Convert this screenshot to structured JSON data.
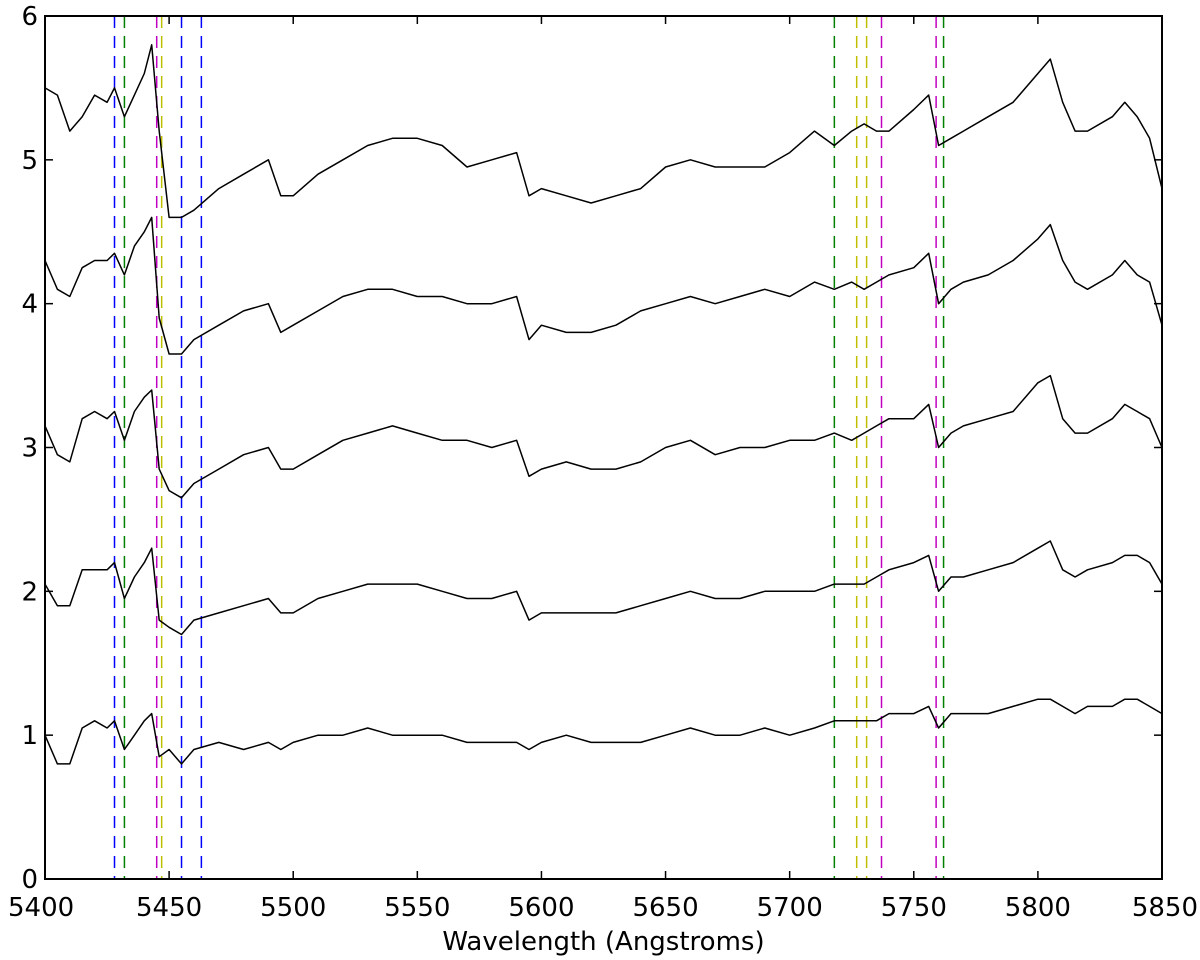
{
  "chart_data": {
    "type": "line",
    "title": "",
    "xlabel": "Wavelength (Angstroms)",
    "ylabel": "",
    "xlim": [
      5400,
      5850
    ],
    "ylim": [
      0,
      6
    ],
    "xticks": [
      5400,
      5450,
      5500,
      5550,
      5600,
      5650,
      5700,
      5750,
      5800,
      5850
    ],
    "yticks": [
      0,
      1,
      2,
      3,
      4,
      5,
      6
    ],
    "grid": false,
    "legend": "none",
    "line_color": "#000000",
    "vertical_lines": [
      {
        "x": 5428,
        "color": "#0000ff"
      },
      {
        "x": 5432,
        "color": "#008000"
      },
      {
        "x": 5445,
        "color": "#c000c0"
      },
      {
        "x": 5447,
        "color": "#bfbf00"
      },
      {
        "x": 5455,
        "color": "#0000ff"
      },
      {
        "x": 5463,
        "color": "#0000ff"
      },
      {
        "x": 5718,
        "color": "#008000"
      },
      {
        "x": 5727,
        "color": "#bfbf00"
      },
      {
        "x": 5731,
        "color": "#bfbf00"
      },
      {
        "x": 5737,
        "color": "#c000c0"
      },
      {
        "x": 5759,
        "color": "#c000c0"
      },
      {
        "x": 5762,
        "color": "#008000"
      }
    ],
    "series": [
      {
        "x": [
          5400,
          5405,
          5410,
          5415,
          5420,
          5425,
          5428,
          5432,
          5436,
          5440,
          5443,
          5446,
          5450,
          5455,
          5460,
          5470,
          5480,
          5490,
          5495,
          5500,
          5510,
          5520,
          5530,
          5540,
          5550,
          5560,
          5570,
          5580,
          5590,
          5595,
          5600,
          5610,
          5620,
          5630,
          5640,
          5650,
          5660,
          5670,
          5680,
          5690,
          5700,
          5710,
          5718,
          5725,
          5730,
          5735,
          5740,
          5750,
          5756,
          5760,
          5765,
          5770,
          5780,
          5790,
          5800,
          5805,
          5810,
          5815,
          5820,
          5830,
          5835,
          5840,
          5845,
          5850
        ],
        "values": [
          5.5,
          5.45,
          5.2,
          5.3,
          5.45,
          5.4,
          5.5,
          5.3,
          5.45,
          5.6,
          5.8,
          5.2,
          4.6,
          4.6,
          4.65,
          4.8,
          4.9,
          5.0,
          4.75,
          4.75,
          4.9,
          5.0,
          5.1,
          5.15,
          5.15,
          5.1,
          4.95,
          5.0,
          5.05,
          4.75,
          4.8,
          4.75,
          4.7,
          4.75,
          4.8,
          4.95,
          5.0,
          4.95,
          4.95,
          4.95,
          5.05,
          5.2,
          5.1,
          5.2,
          5.25,
          5.2,
          5.2,
          5.35,
          5.45,
          5.1,
          5.15,
          5.2,
          5.3,
          5.4,
          5.6,
          5.7,
          5.4,
          5.2,
          5.2,
          5.3,
          5.4,
          5.3,
          5.15,
          4.8
        ]
      },
      {
        "x": [
          5400,
          5405,
          5410,
          5415,
          5420,
          5425,
          5428,
          5432,
          5436,
          5440,
          5443,
          5446,
          5450,
          5455,
          5460,
          5470,
          5480,
          5490,
          5495,
          5500,
          5510,
          5520,
          5530,
          5540,
          5550,
          5560,
          5570,
          5580,
          5590,
          5595,
          5600,
          5610,
          5620,
          5630,
          5640,
          5650,
          5660,
          5670,
          5680,
          5690,
          5700,
          5710,
          5718,
          5725,
          5730,
          5735,
          5740,
          5750,
          5756,
          5760,
          5765,
          5770,
          5780,
          5790,
          5800,
          5805,
          5810,
          5815,
          5820,
          5830,
          5835,
          5840,
          5845,
          5850
        ],
        "values": [
          4.3,
          4.1,
          4.05,
          4.25,
          4.3,
          4.3,
          4.35,
          4.2,
          4.4,
          4.5,
          4.6,
          3.9,
          3.65,
          3.65,
          3.75,
          3.85,
          3.95,
          4.0,
          3.8,
          3.85,
          3.95,
          4.05,
          4.1,
          4.1,
          4.05,
          4.05,
          4.0,
          4.0,
          4.05,
          3.75,
          3.85,
          3.8,
          3.8,
          3.85,
          3.95,
          4.0,
          4.05,
          4.0,
          4.05,
          4.1,
          4.05,
          4.15,
          4.1,
          4.15,
          4.1,
          4.15,
          4.2,
          4.25,
          4.35,
          4.0,
          4.1,
          4.15,
          4.2,
          4.3,
          4.45,
          4.55,
          4.3,
          4.15,
          4.1,
          4.2,
          4.3,
          4.2,
          4.15,
          3.85
        ]
      },
      {
        "x": [
          5400,
          5405,
          5410,
          5415,
          5420,
          5425,
          5428,
          5432,
          5436,
          5440,
          5443,
          5446,
          5450,
          5455,
          5460,
          5470,
          5480,
          5490,
          5495,
          5500,
          5510,
          5520,
          5530,
          5540,
          5550,
          5560,
          5570,
          5580,
          5590,
          5595,
          5600,
          5610,
          5620,
          5630,
          5640,
          5650,
          5660,
          5670,
          5680,
          5690,
          5700,
          5710,
          5718,
          5725,
          5730,
          5735,
          5740,
          5750,
          5756,
          5760,
          5765,
          5770,
          5780,
          5790,
          5800,
          5805,
          5810,
          5815,
          5820,
          5830,
          5835,
          5840,
          5845,
          5850
        ],
        "values": [
          3.15,
          2.95,
          2.9,
          3.2,
          3.25,
          3.2,
          3.25,
          3.05,
          3.25,
          3.35,
          3.4,
          2.85,
          2.7,
          2.65,
          2.75,
          2.85,
          2.95,
          3.0,
          2.85,
          2.85,
          2.95,
          3.05,
          3.1,
          3.15,
          3.1,
          3.05,
          3.05,
          3.0,
          3.05,
          2.8,
          2.85,
          2.9,
          2.85,
          2.85,
          2.9,
          3.0,
          3.05,
          2.95,
          3.0,
          3.0,
          3.05,
          3.05,
          3.1,
          3.05,
          3.1,
          3.15,
          3.2,
          3.2,
          3.3,
          3.0,
          3.1,
          3.15,
          3.2,
          3.25,
          3.45,
          3.5,
          3.2,
          3.1,
          3.1,
          3.2,
          3.3,
          3.25,
          3.2,
          3.0
        ]
      },
      {
        "x": [
          5400,
          5405,
          5410,
          5415,
          5420,
          5425,
          5428,
          5432,
          5436,
          5440,
          5443,
          5446,
          5450,
          5455,
          5460,
          5470,
          5480,
          5490,
          5495,
          5500,
          5510,
          5520,
          5530,
          5540,
          5550,
          5560,
          5570,
          5580,
          5590,
          5595,
          5600,
          5610,
          5620,
          5630,
          5640,
          5650,
          5660,
          5670,
          5680,
          5690,
          5700,
          5710,
          5718,
          5725,
          5730,
          5735,
          5740,
          5750,
          5756,
          5760,
          5765,
          5770,
          5780,
          5790,
          5800,
          5805,
          5810,
          5815,
          5820,
          5830,
          5835,
          5840,
          5845,
          5850
        ],
        "values": [
          2.05,
          1.9,
          1.9,
          2.15,
          2.15,
          2.15,
          2.2,
          1.95,
          2.1,
          2.2,
          2.3,
          1.8,
          1.75,
          1.7,
          1.8,
          1.85,
          1.9,
          1.95,
          1.85,
          1.85,
          1.95,
          2.0,
          2.05,
          2.05,
          2.05,
          2.0,
          1.95,
          1.95,
          2.0,
          1.8,
          1.85,
          1.85,
          1.85,
          1.85,
          1.9,
          1.95,
          2.0,
          1.95,
          1.95,
          2.0,
          2.0,
          2.0,
          2.05,
          2.05,
          2.05,
          2.1,
          2.15,
          2.2,
          2.25,
          2.0,
          2.1,
          2.1,
          2.15,
          2.2,
          2.3,
          2.35,
          2.15,
          2.1,
          2.15,
          2.2,
          2.25,
          2.25,
          2.2,
          2.05
        ]
      },
      {
        "x": [
          5400,
          5405,
          5410,
          5415,
          5420,
          5425,
          5428,
          5432,
          5436,
          5440,
          5443,
          5446,
          5450,
          5455,
          5460,
          5470,
          5480,
          5490,
          5495,
          5500,
          5510,
          5520,
          5530,
          5540,
          5550,
          5560,
          5570,
          5580,
          5590,
          5595,
          5600,
          5610,
          5620,
          5630,
          5640,
          5650,
          5660,
          5670,
          5680,
          5690,
          5700,
          5710,
          5718,
          5725,
          5730,
          5735,
          5740,
          5750,
          5756,
          5760,
          5765,
          5770,
          5780,
          5790,
          5800,
          5805,
          5810,
          5815,
          5820,
          5830,
          5835,
          5840,
          5845,
          5850
        ],
        "values": [
          1.0,
          0.8,
          0.8,
          1.05,
          1.1,
          1.05,
          1.1,
          0.9,
          1.0,
          1.1,
          1.15,
          0.85,
          0.9,
          0.8,
          0.9,
          0.95,
          0.9,
          0.95,
          0.9,
          0.95,
          1.0,
          1.0,
          1.05,
          1.0,
          1.0,
          1.0,
          0.95,
          0.95,
          0.95,
          0.9,
          0.95,
          1.0,
          0.95,
          0.95,
          0.95,
          1.0,
          1.05,
          1.0,
          1.0,
          1.05,
          1.0,
          1.05,
          1.1,
          1.1,
          1.1,
          1.1,
          1.15,
          1.15,
          1.2,
          1.05,
          1.15,
          1.15,
          1.15,
          1.2,
          1.25,
          1.25,
          1.2,
          1.15,
          1.2,
          1.2,
          1.25,
          1.25,
          1.2,
          1.15
        ]
      }
    ]
  }
}
